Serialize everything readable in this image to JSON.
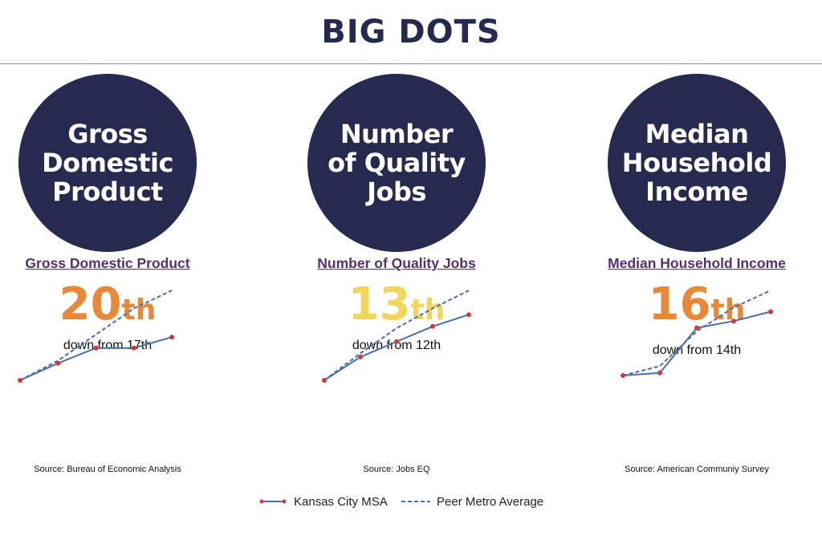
{
  "header": {
    "title": "BIG DOTS"
  },
  "legend": {
    "kc_label": "Kansas City MSA",
    "peer_label": "Peer Metro Average"
  },
  "colors": {
    "dot": "#262a4f",
    "kc_line": "#4a6fa5",
    "kc_marker": "#d0393a",
    "peer_line": "#4a6fa5",
    "rank_orange": "#e8893a",
    "rank_yellow": "#f1d55c",
    "link": "#53306f"
  },
  "chart_data": [
    {
      "type": "line",
      "dot_label": "Gross\nDomestic\nProduct",
      "link_label": "Gross Domestic Product",
      "rank_number": "20",
      "rank_suffix": "th",
      "rank_color": "orange",
      "change_text": "down from 17th",
      "source": "Source: Bureau of Economic Analysis",
      "x": [
        0,
        1,
        2,
        3,
        4
      ],
      "series": [
        {
          "name": "Kansas City MSA",
          "style": "solid-markers",
          "values": [
            0,
            19,
            36,
            36,
            48
          ]
        },
        {
          "name": "Peer Metro Average",
          "style": "dashed",
          "values": [
            0,
            22,
            51,
            80,
            100
          ]
        }
      ],
      "ylim": [
        0,
        100
      ]
    },
    {
      "type": "line",
      "dot_label": "Number\nof Quality\nJobs",
      "link_label": "Number of Quality Jobs",
      "rank_number": "13",
      "rank_suffix": "th",
      "rank_color": "yellow",
      "change_text": "down from 12th",
      "source": "Source: Jobs EQ",
      "x": [
        0,
        1,
        2,
        3,
        4
      ],
      "series": [
        {
          "name": "Kansas City MSA",
          "style": "solid-markers",
          "values": [
            0,
            26,
            43,
            60,
            73
          ]
        },
        {
          "name": "Peer Metro Average",
          "style": "dashed",
          "values": [
            0,
            30,
            58,
            80,
            100
          ]
        }
      ],
      "ylim": [
        0,
        100
      ]
    },
    {
      "type": "line",
      "dot_label": "Median\nHousehold\nIncome",
      "link_label": "Median Household Income",
      "rank_number": "16",
      "rank_suffix": "th",
      "rank_color": "orange",
      "change_text": "down from 14th",
      "source": "Source: American Communiy Survey",
      "x": [
        0,
        1,
        2,
        3,
        4
      ],
      "series": [
        {
          "name": "Kansas City MSA",
          "style": "solid-markers",
          "values": [
            0,
            3,
            56,
            64,
            75
          ]
        },
        {
          "name": "Peer Metro Average",
          "style": "dashed",
          "values": [
            0,
            11,
            52,
            80,
            100
          ]
        }
      ],
      "ylim": [
        0,
        100
      ]
    }
  ]
}
